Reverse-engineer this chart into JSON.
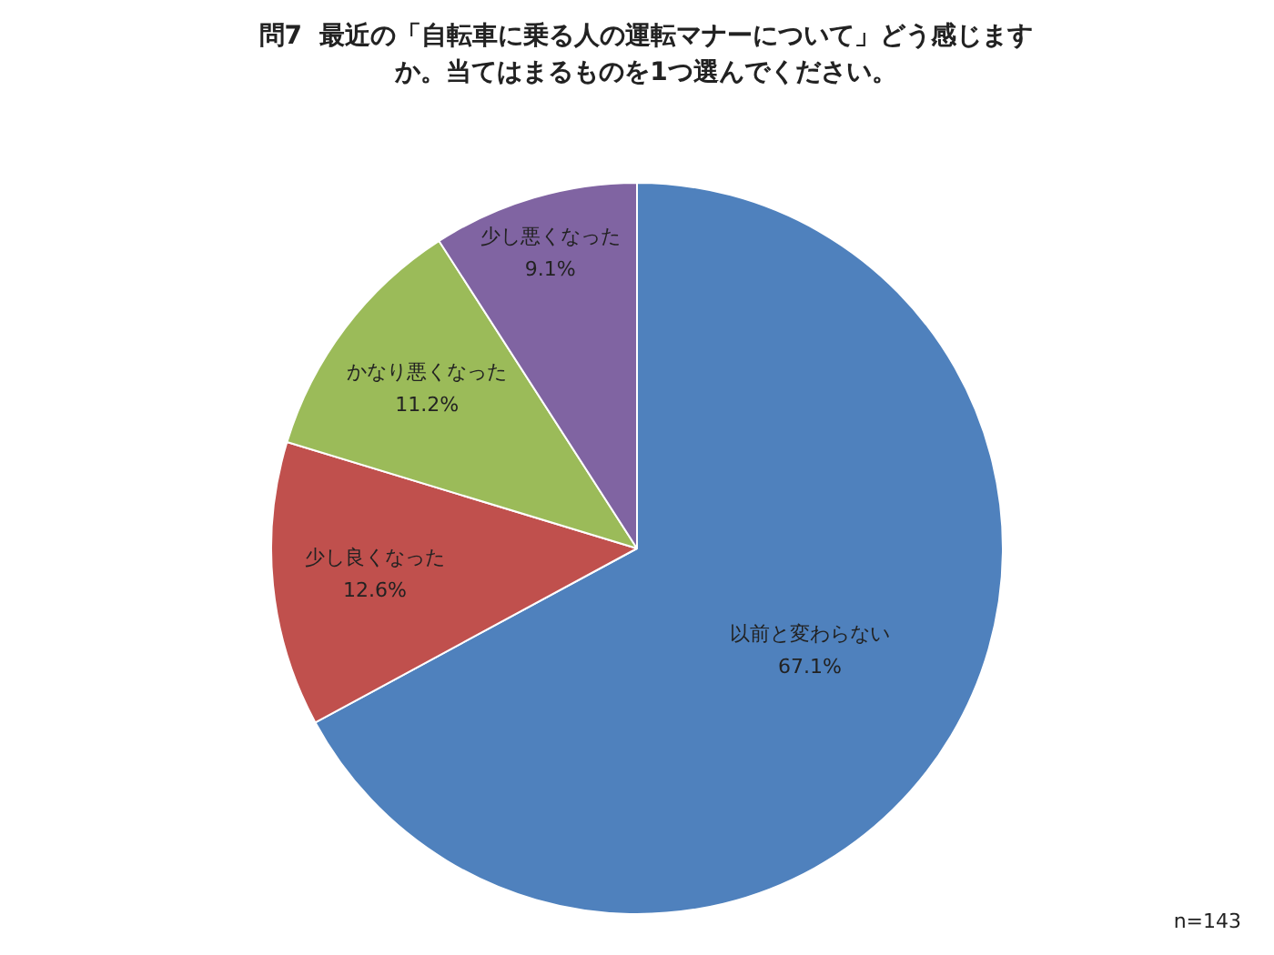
{
  "chart_data": {
    "type": "pie",
    "title": "問7  最近の「自転車に乗る人の運転マナーについて」どう感じますか。当てはまるものを1つ選んでください。",
    "categories": [
      "以前と変わらない",
      "少し良くなった",
      "かなり悪くなった",
      "少し悪くなった"
    ],
    "values": [
      67.1,
      12.6,
      11.2,
      9.1
    ],
    "colors": [
      "#4f81bd",
      "#c0504d",
      "#9bbb59",
      "#8064a2"
    ],
    "value_labels": [
      "67.1%",
      "12.6%",
      "11.2%",
      "9.1%"
    ],
    "legend": false,
    "annotations": [
      "n=143"
    ]
  }
}
